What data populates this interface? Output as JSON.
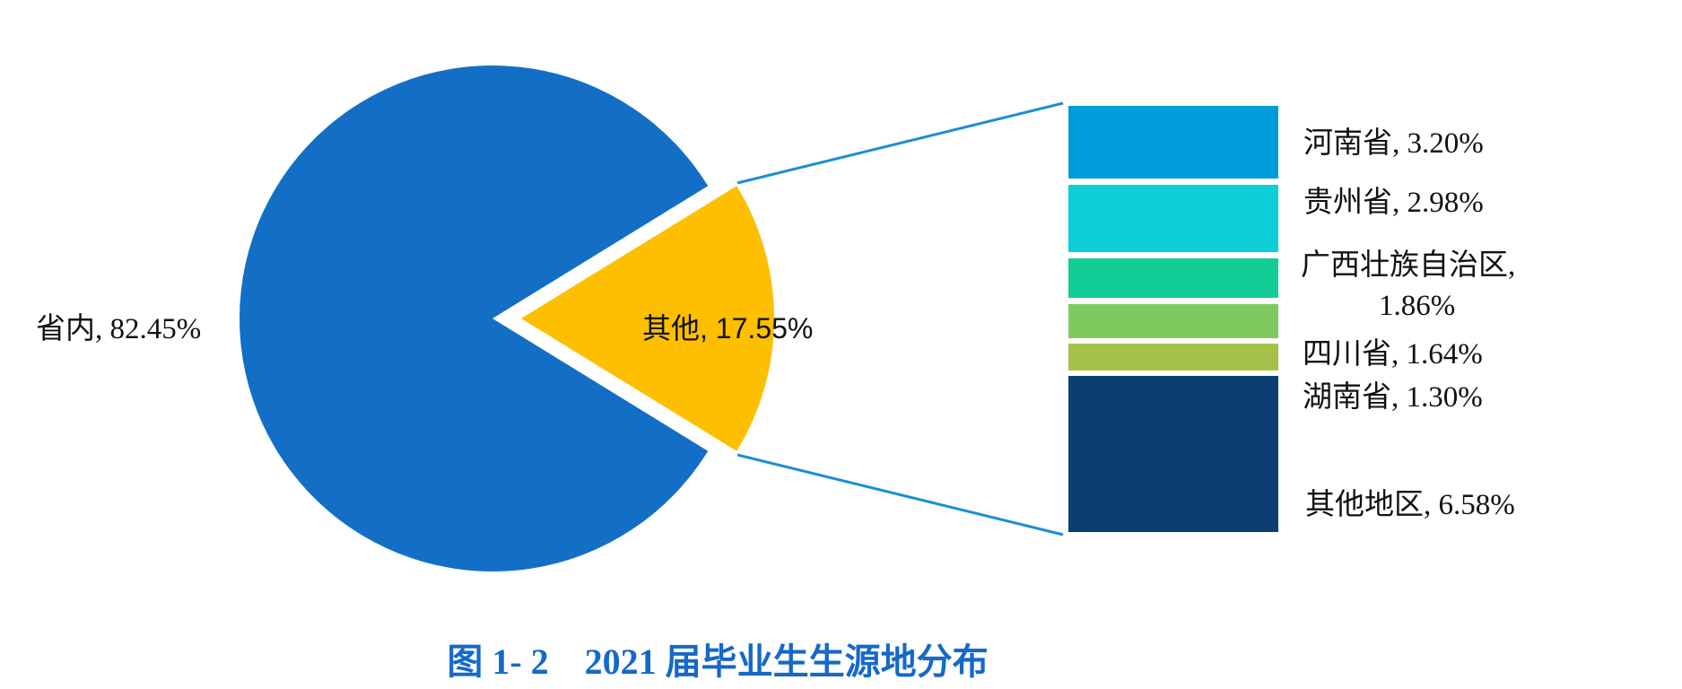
{
  "caption": "图 1- 2    2021 届毕业生生源地分布",
  "colors": {
    "pie_inside": "#136fc6",
    "pie_other": "#fdbf00",
    "connector": "#1c8fd0"
  },
  "chart_data": {
    "type": "bar-of-pie",
    "title": "图 1- 2 2021 届毕业生生源地分布",
    "pie": {
      "slices": [
        {
          "label": "省内",
          "value": 82.45,
          "display": "省内, 82.45%",
          "color": "#136fc6"
        },
        {
          "label": "其他",
          "value": 17.55,
          "display": "其他, 17.55%",
          "color": "#fdbf00",
          "exploded": true
        }
      ]
    },
    "breakdown_bar": {
      "parent": "其他",
      "segments": [
        {
          "label": "河南省",
          "value": 3.2,
          "display": "河南省, 3.20%",
          "color": "#009cda"
        },
        {
          "label": "贵州省",
          "value": 2.98,
          "display": "贵州省, 2.98%",
          "color": "#0dcfd8"
        },
        {
          "label": "广西壮族自治区",
          "value": 1.86,
          "display_line1": "广西壮族自治区,",
          "display_line2": "1.86%",
          "color": "#12cd96"
        },
        {
          "label": "四川省",
          "value": 1.64,
          "display": "四川省, 1.64%",
          "color": "#80c95f"
        },
        {
          "label": "湖南省",
          "value": 1.3,
          "display": "湖南省, 1.30%",
          "color": "#a5c147"
        },
        {
          "label": "其他地区",
          "value": 6.58,
          "display": "其他地区, 6.58%",
          "color": "#0b3f72"
        }
      ]
    },
    "unit": "%",
    "legend": "none (data labels)"
  }
}
